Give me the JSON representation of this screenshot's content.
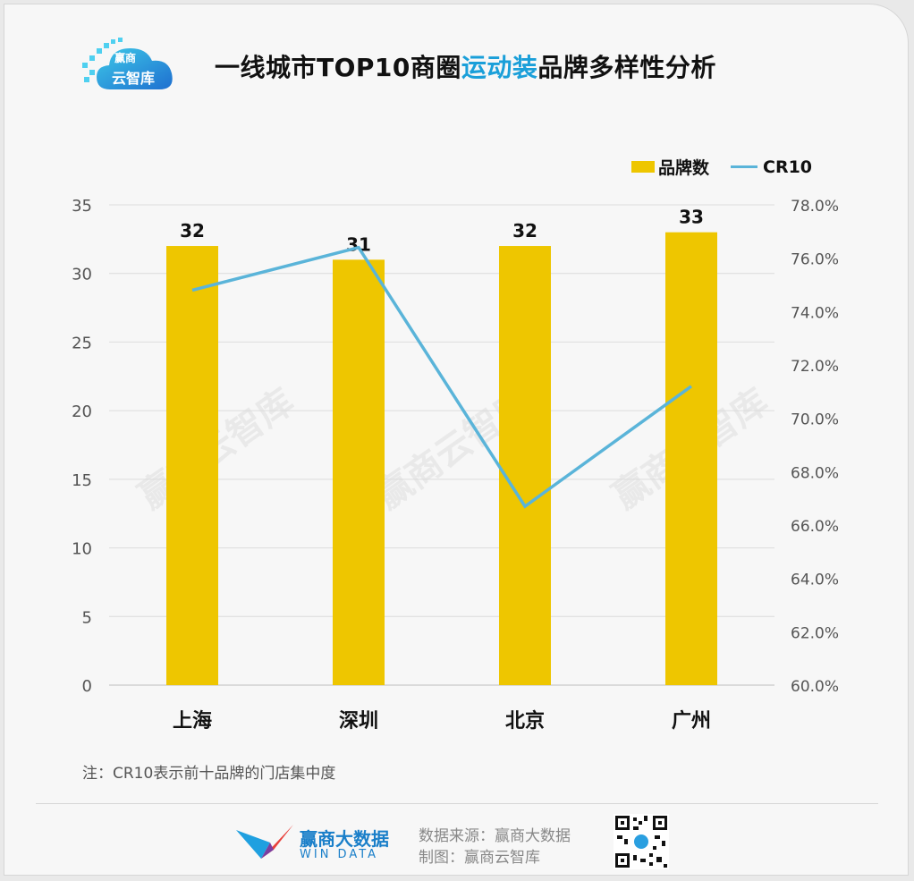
{
  "header": {
    "logo_line1": "赢商",
    "logo_line2": "云智库",
    "title_prefix": "一线城市TOP10商圈",
    "title_highlight": "运动装",
    "title_suffix": "品牌多样性分析"
  },
  "legend": {
    "bar_label": "品牌数",
    "line_label": "CR10"
  },
  "colors": {
    "bar": "#eec600",
    "line": "#5ab4d9",
    "highlight": "#1a9fd9"
  },
  "watermark": "赢商云智库",
  "chart_data": {
    "type": "bar",
    "categories": [
      "上海",
      "深圳",
      "北京",
      "广州"
    ],
    "series": [
      {
        "name": "品牌数",
        "type": "bar",
        "axis": "left",
        "values": [
          32,
          31,
          32,
          33
        ]
      },
      {
        "name": "CR10",
        "type": "line",
        "axis": "right",
        "values": [
          74.8,
          76.4,
          66.7,
          71.2
        ]
      }
    ],
    "y_left": {
      "min": 0,
      "max": 35,
      "ticks": [
        "0",
        "5",
        "10",
        "15",
        "20",
        "25",
        "30",
        "35"
      ]
    },
    "y_right": {
      "min": 60,
      "max": 78,
      "ticks": [
        "60.0%",
        "62.0%",
        "64.0%",
        "66.0%",
        "68.0%",
        "70.0%",
        "72.0%",
        "74.0%",
        "76.0%",
        "78.0%"
      ]
    },
    "bar_labels": [
      "32",
      "31",
      "32",
      "33"
    ],
    "grid": true,
    "legend_position": "top-right"
  },
  "footer": {
    "note": "注：CR10表示前十品牌的门店集中度",
    "brand_cn": "赢商大数据",
    "brand_en": "WIN DATA",
    "source": "数据来源：赢商大数据",
    "made_by": "制图：赢商云智库"
  }
}
